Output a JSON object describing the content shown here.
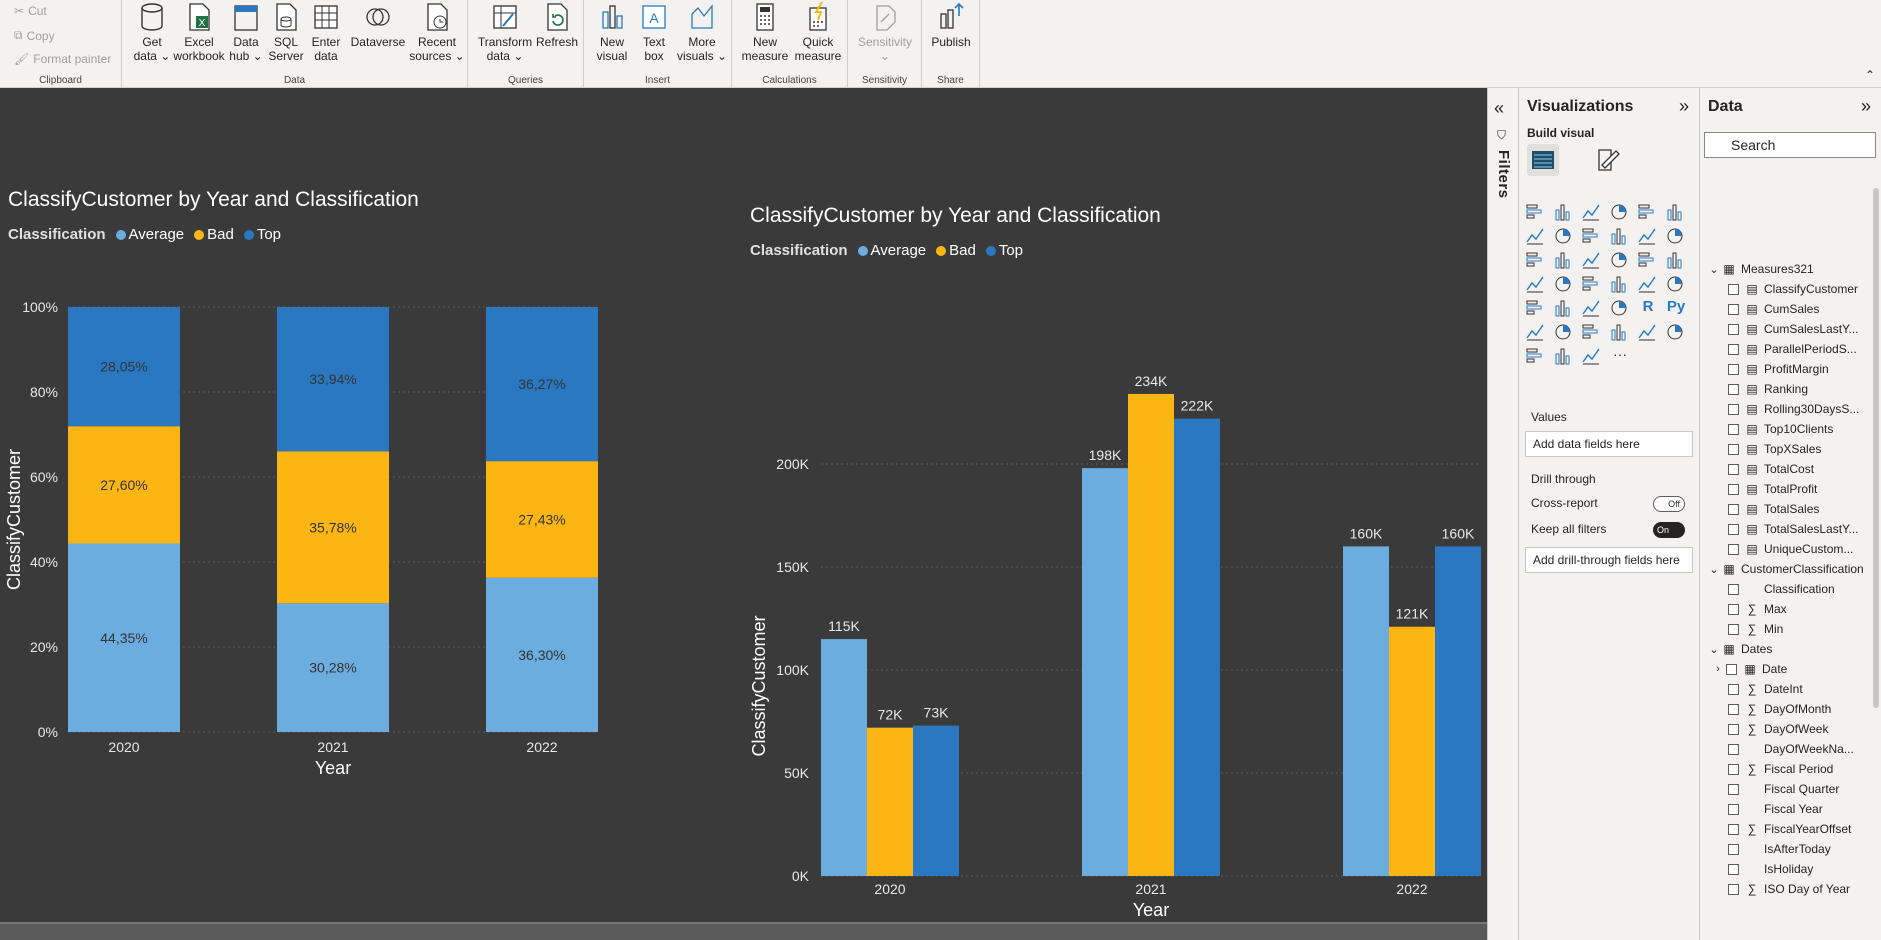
{
  "ribbon": {
    "clipboard": {
      "cut": "Cut",
      "copy": "Copy",
      "format_painter": "Format painter",
      "label": "Clipboard"
    },
    "data": {
      "label": "Data",
      "buttons": [
        {
          "line1": "Get",
          "line2": "data ⌄"
        },
        {
          "line1": "Excel",
          "line2": "workbook"
        },
        {
          "line1": "Data",
          "line2": "hub ⌄"
        },
        {
          "line1": "SQL",
          "line2": "Server"
        },
        {
          "line1": "Enter",
          "line2": "data"
        },
        {
          "line1": "Dataverse",
          "line2": ""
        },
        {
          "line1": "Recent",
          "line2": "sources ⌄"
        }
      ]
    },
    "queries": {
      "label": "Queries",
      "buttons": [
        {
          "line1": "Transform",
          "line2": "data ⌄"
        },
        {
          "line1": "Refresh",
          "line2": ""
        }
      ]
    },
    "insert": {
      "label": "Insert",
      "buttons": [
        {
          "line1": "New",
          "line2": "visual"
        },
        {
          "line1": "Text",
          "line2": "box"
        },
        {
          "line1": "More",
          "line2": "visuals ⌄"
        }
      ]
    },
    "calculations": {
      "label": "Calculations",
      "buttons": [
        {
          "line1": "New",
          "line2": "measure"
        },
        {
          "line1": "Quick",
          "line2": "measure"
        }
      ]
    },
    "sensitivity": {
      "label": "Sensitivity",
      "button": "Sensitivity"
    },
    "share": {
      "label": "Share",
      "button": "Publish"
    }
  },
  "colors": {
    "average": "#6cade0",
    "bad": "#fbb614",
    "top": "#2a78c2",
    "canvas": "#3a3a3a"
  },
  "chart_data": [
    {
      "type": "bar",
      "stacked": "100%",
      "title": "ClassifyCustomer by Year and Classification",
      "legend_title": "Classification",
      "categories": [
        "2020",
        "2021",
        "2022"
      ],
      "series": [
        {
          "name": "Average",
          "values": [
            44.35,
            30.28,
            36.3
          ],
          "labels": [
            "44,35%",
            "30,28%",
            "36,30%"
          ]
        },
        {
          "name": "Bad",
          "values": [
            27.6,
            35.78,
            27.43
          ],
          "labels": [
            "27,60%",
            "35,78%",
            "27,43%"
          ]
        },
        {
          "name": "Top",
          "values": [
            28.05,
            33.94,
            36.27
          ],
          "labels": [
            "28,05%",
            "33,94%",
            "36,27%"
          ]
        }
      ],
      "xlabel": "Year",
      "ylabel": "ClassifyCustomer",
      "ylim": [
        0,
        100
      ],
      "yticks": [
        "0%",
        "20%",
        "40%",
        "60%",
        "80%",
        "100%"
      ]
    },
    {
      "type": "bar",
      "title": "ClassifyCustomer by Year and Classification",
      "legend_title": "Classification",
      "categories": [
        "2020",
        "2021",
        "2022"
      ],
      "series": [
        {
          "name": "Average",
          "values": [
            115000,
            198000,
            160000
          ],
          "labels": [
            "115K",
            "198K",
            "160K"
          ]
        },
        {
          "name": "Bad",
          "values": [
            72000,
            234000,
            121000
          ],
          "labels": [
            "72K",
            "234K",
            "121K"
          ]
        },
        {
          "name": "Top",
          "values": [
            73000,
            222000,
            160000
          ],
          "labels": [
            "73K",
            "222K",
            "160K"
          ]
        }
      ],
      "xlabel": "Year",
      "ylabel": "ClassifyCustomer",
      "ylim": [
        0,
        260000
      ],
      "yticks": [
        "0K",
        "50K",
        "100K",
        "150K",
        "200K"
      ]
    }
  ],
  "filters": {
    "label": "Filters"
  },
  "visualizations": {
    "title": "Visualizations",
    "build_visual": "Build visual",
    "values_label": "Values",
    "values_well": "Add data fields here",
    "drill_through": "Drill through",
    "cross_report": "Cross-report",
    "cross_report_state": "Off",
    "keep_all_filters": "Keep all filters",
    "keep_all_filters_state": "On",
    "drill_well": "Add drill-through fields here",
    "more": "···"
  },
  "data_pane": {
    "title": "Data",
    "search_placeholder": "Search",
    "tables": [
      {
        "name": "Measures321",
        "fields": [
          "ClassifyCustomer",
          "CumSales",
          "CumSalesLastY...",
          "ParallelPeriodS...",
          "ProfitMargin",
          "Ranking",
          "Rolling30DaysS...",
          "Top10Clients",
          "TopXSales",
          "TotalCost",
          "TotalProfit",
          "TotalSales",
          "TotalSalesLastY...",
          "UniqueCustom..."
        ]
      },
      {
        "name": "CustomerClassification",
        "fields": [
          "Classification",
          "Max",
          "Min"
        ]
      },
      {
        "name": "Dates",
        "fields": [
          "Date",
          "DateInt",
          "DayOfMonth",
          "DayOfWeek",
          "DayOfWeekNa...",
          "Fiscal Period",
          "Fiscal Quarter",
          "Fiscal Year",
          "FiscalYearOffset",
          "IsAfterToday",
          "IsHoliday",
          "ISO Day of Year"
        ]
      }
    ]
  }
}
